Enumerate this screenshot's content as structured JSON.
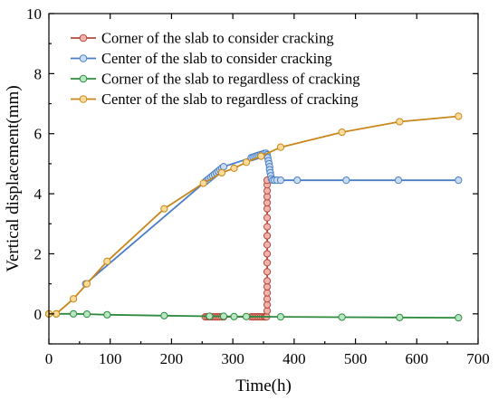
{
  "chart_data": {
    "type": "line",
    "title": "",
    "xlabel": "Time(h)",
    "ylabel": "Vertical displacement(mm)",
    "xlim": [
      0,
      700
    ],
    "ylim": [
      -1,
      10
    ],
    "xticks": [
      "0",
      "100",
      "200",
      "300",
      "400",
      "500",
      "600",
      "700"
    ],
    "yticks": [
      "0",
      "2",
      "4",
      "6",
      "8",
      "10"
    ],
    "legend_position": "top-left",
    "series": [
      {
        "name": "Corner of the slab to consider cracking",
        "color": "#b5493b",
        "marker_fill": "#f2b3ad",
        "x": [
          255,
          258,
          261,
          264,
          267,
          270,
          273,
          276,
          279,
          282,
          285,
          330,
          333,
          336,
          339,
          342,
          345,
          348,
          351,
          353,
          355,
          356,
          356,
          356,
          356,
          356,
          356,
          356,
          356,
          356,
          356,
          356,
          356,
          356,
          356,
          356,
          356,
          356,
          356,
          356
        ],
        "y": [
          -0.1,
          -0.1,
          -0.1,
          -0.1,
          -0.1,
          -0.1,
          -0.1,
          -0.1,
          -0.1,
          -0.1,
          -0.1,
          -0.1,
          -0.1,
          -0.1,
          -0.1,
          -0.1,
          -0.1,
          -0.1,
          -0.1,
          -0.1,
          -0.1,
          0.1,
          0.3,
          0.5,
          0.7,
          0.9,
          1.1,
          1.4,
          1.7,
          2.0,
          2.3,
          2.6,
          2.9,
          3.2,
          3.5,
          3.7,
          3.9,
          4.1,
          4.3,
          4.45
        ]
      },
      {
        "name": "Center of the slab to consider cracking",
        "color": "#4a7ec4",
        "marker_fill": "#c9dcf2",
        "x": [
          60,
          255,
          258,
          261,
          264,
          267,
          270,
          273,
          276,
          279,
          282,
          285,
          330,
          333,
          336,
          339,
          342,
          345,
          348,
          351,
          354,
          356,
          357,
          358,
          359,
          360,
          360,
          361,
          362,
          363,
          365,
          368,
          372,
          378,
          405,
          485,
          570,
          668
        ],
        "y": [
          1.0,
          4.4,
          4.45,
          4.5,
          4.55,
          4.6,
          4.65,
          4.7,
          4.75,
          4.8,
          4.85,
          4.9,
          5.2,
          5.22,
          5.24,
          5.26,
          5.28,
          5.3,
          5.32,
          5.34,
          5.35,
          5.3,
          5.2,
          5.1,
          5.0,
          4.9,
          4.8,
          4.7,
          4.6,
          4.5,
          4.45,
          4.45,
          4.45,
          4.45,
          4.45,
          4.45,
          4.45,
          4.45
        ]
      },
      {
        "name": "Corner of the slab to regardless of cracking",
        "color": "#2e8b3e",
        "marker_fill": "#b9e6c2",
        "x": [
          0,
          12,
          40,
          62,
          95,
          188,
          262,
          285,
          302,
          322,
          378,
          478,
          572,
          668
        ],
        "y": [
          0.0,
          0.0,
          0.0,
          -0.01,
          -0.03,
          -0.06,
          -0.08,
          -0.08,
          -0.09,
          -0.09,
          -0.1,
          -0.11,
          -0.12,
          -0.13
        ]
      },
      {
        "name": "Center of the slab to regardless of cracking",
        "color": "#c9861a",
        "marker_fill": "#fbdc9a",
        "x": [
          0,
          12,
          40,
          62,
          95,
          188,
          252,
          282,
          302,
          322,
          346,
          378,
          478,
          572,
          668
        ],
        "y": [
          0.0,
          0.0,
          0.5,
          1.0,
          1.75,
          3.5,
          4.35,
          4.7,
          4.85,
          5.05,
          5.25,
          5.55,
          6.05,
          6.4,
          6.58
        ]
      }
    ]
  }
}
